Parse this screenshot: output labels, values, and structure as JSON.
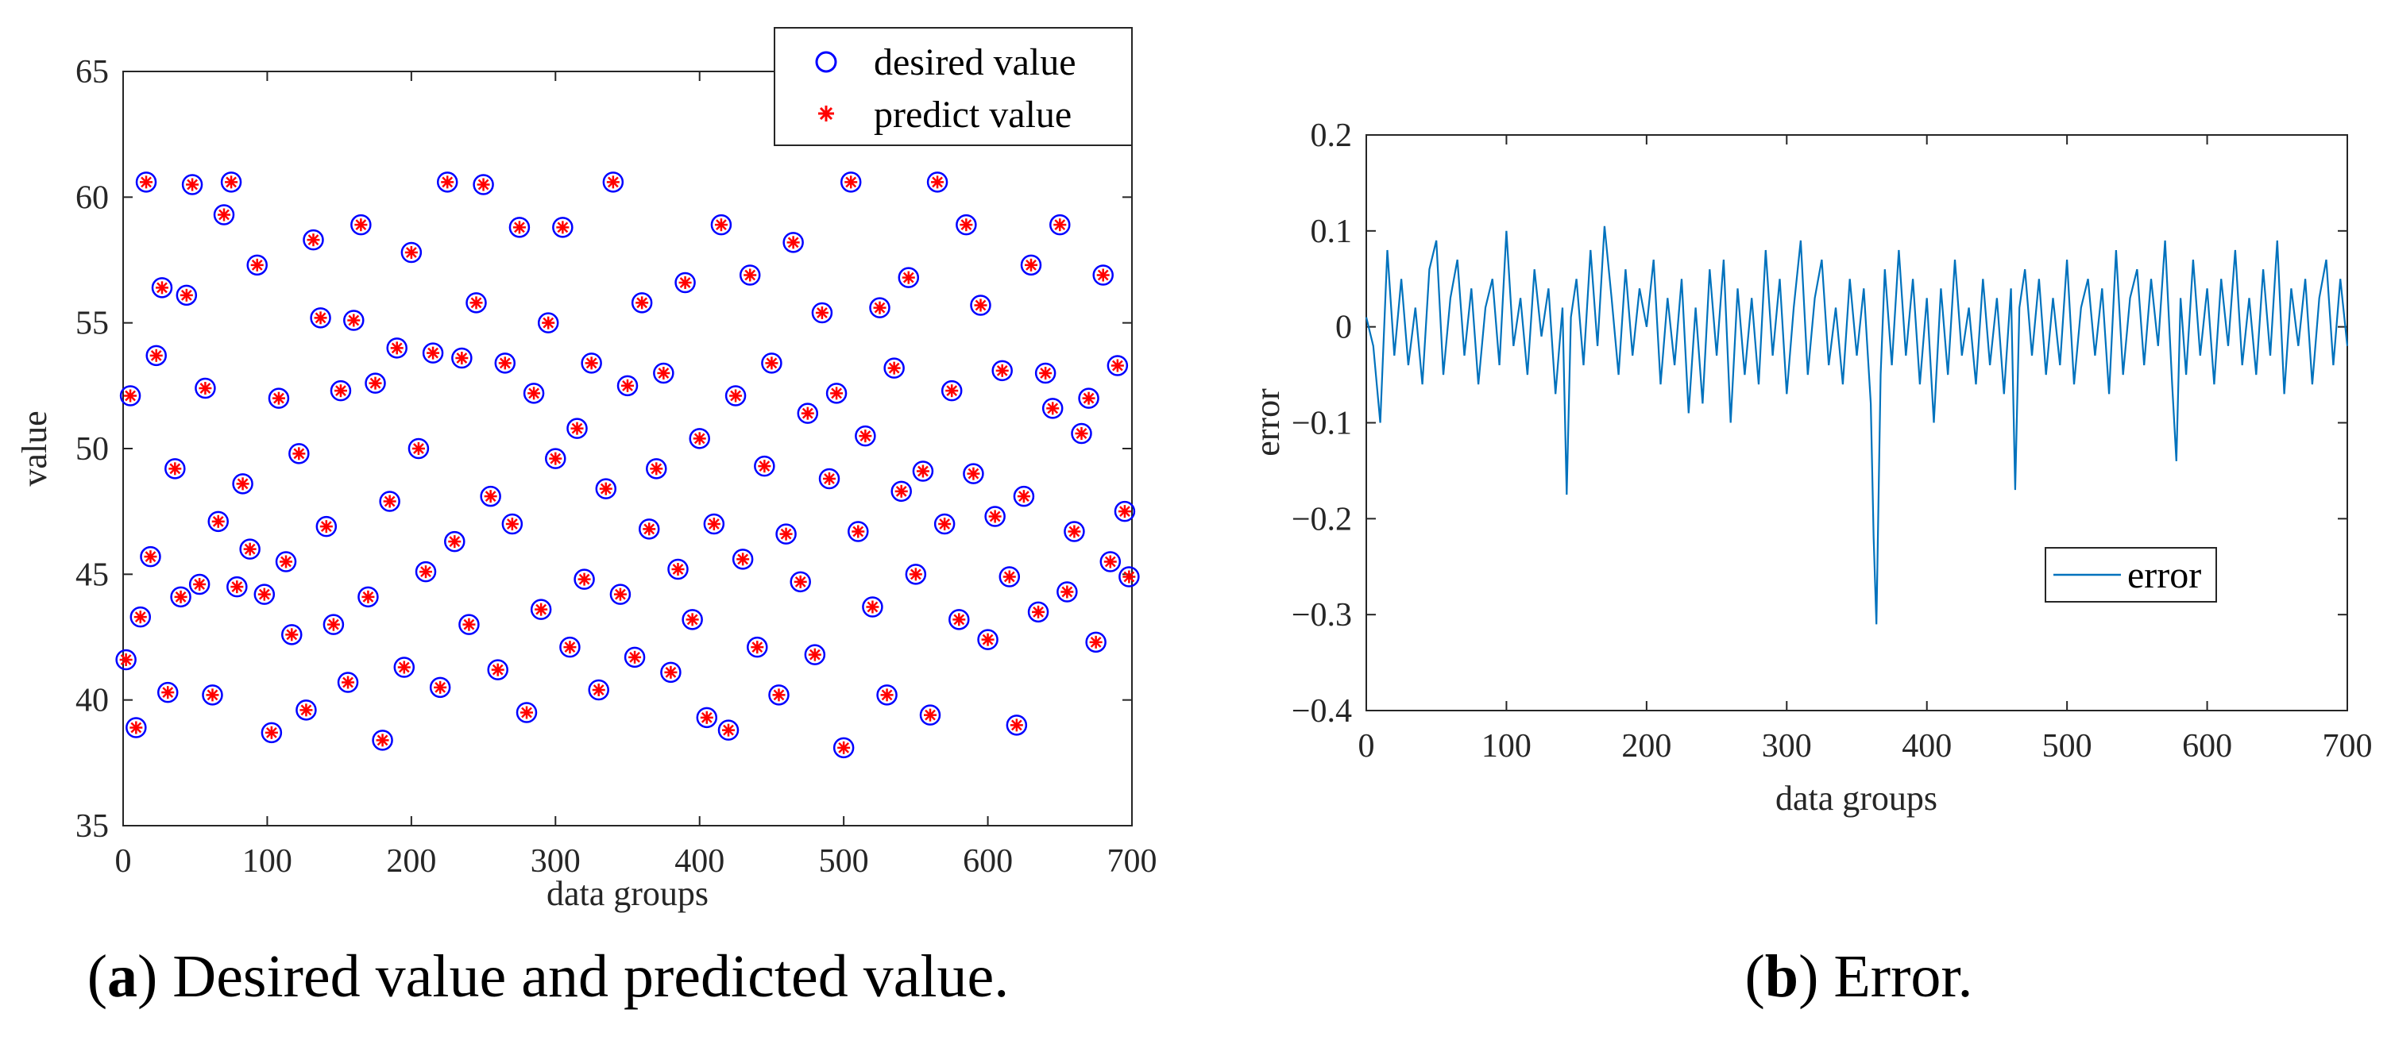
{
  "chart_data": [
    {
      "type": "scatter",
      "title": "",
      "xlabel": "data groups",
      "ylabel": "value",
      "xlim": [
        0,
        700
      ],
      "ylim": [
        35,
        65
      ],
      "xticks": [
        "0",
        "100",
        "200",
        "300",
        "400",
        "500",
        "600",
        "700"
      ],
      "yticks": [
        "35",
        "40",
        "45",
        "50",
        "55",
        "60",
        "65"
      ],
      "legend_position": "top-right",
      "caption_letter": "a",
      "caption_text": ") Desired value and predicted value.",
      "caption_open": "(",
      "colors": {
        "desired": "#0000ff",
        "predict": "#ff0000"
      },
      "series": [
        {
          "name": "desired value",
          "marker": "circle",
          "x": [
            2,
            5,
            9,
            12,
            16,
            19,
            23,
            27,
            31,
            36,
            40,
            44,
            48,
            53,
            57,
            62,
            66,
            70,
            75,
            79,
            83,
            88,
            93,
            98,
            103,
            108,
            113,
            117,
            122,
            127,
            132,
            137,
            141,
            146,
            151,
            156,
            160,
            165,
            170,
            175,
            180,
            185,
            190,
            195,
            200,
            205,
            210,
            215,
            220,
            225,
            230,
            235,
            240,
            245,
            250,
            255,
            260,
            265,
            270,
            275,
            280,
            285,
            290,
            295,
            300,
            305,
            310,
            315,
            320,
            325,
            330,
            335,
            340,
            345,
            350,
            355,
            360,
            365,
            370,
            375,
            380,
            385,
            390,
            395,
            400,
            405,
            410,
            415,
            420,
            425,
            430,
            435,
            440,
            445,
            450,
            455,
            460,
            465,
            470,
            475,
            480,
            485,
            490,
            495,
            500,
            505,
            510,
            515,
            520,
            525,
            530,
            535,
            540,
            545,
            550,
            555,
            560,
            565,
            570,
            575,
            580,
            585,
            590,
            595,
            600,
            605,
            610,
            615,
            620,
            625,
            630,
            635,
            640,
            645,
            650,
            655,
            660,
            665,
            670,
            675,
            680,
            685,
            690,
            695,
            698
          ],
          "y": [
            41.6,
            52.1,
            38.9,
            43.3,
            60.6,
            45.7,
            53.7,
            56.4,
            40.3,
            49.2,
            44.1,
            56.1,
            60.5,
            44.6,
            52.4,
            40.2,
            47.1,
            59.3,
            60.6,
            44.5,
            48.6,
            46.0,
            57.3,
            44.2,
            38.7,
            52.0,
            45.5,
            42.6,
            49.8,
            39.6,
            58.3,
            55.2,
            46.9,
            43.0,
            52.3,
            40.7,
            55.1,
            58.9,
            44.1,
            52.6,
            38.4,
            47.9,
            54.0,
            41.3,
            57.8,
            50.0,
            45.1,
            53.8,
            40.5,
            60.6,
            46.3,
            53.6,
            43.0,
            55.8,
            60.5,
            48.1,
            41.2,
            53.4,
            47.0,
            58.8,
            39.5,
            52.2,
            43.6,
            55.0,
            49.6,
            58.8,
            42.1,
            50.8,
            44.8,
            53.4,
            40.4,
            48.4,
            60.6,
            44.2,
            52.5,
            41.7,
            55.8,
            46.8,
            49.2,
            53.0,
            41.1,
            45.2,
            56.6,
            43.2,
            50.4,
            39.3,
            47.0,
            58.9,
            38.8,
            52.1,
            45.6,
            56.9,
            42.1,
            49.3,
            53.4,
            40.2,
            46.6,
            58.2,
            44.7,
            51.4,
            41.8,
            55.4,
            48.8,
            52.2,
            38.1,
            60.6,
            46.7,
            50.5,
            43.7,
            55.6,
            40.2,
            53.2,
            48.3,
            56.8,
            45.0,
            49.1,
            39.4,
            60.6,
            47.0,
            52.3,
            43.2,
            58.9,
            49.0,
            55.7,
            42.4,
            47.3,
            53.1,
            44.9,
            39.0,
            48.1,
            57.3,
            43.5,
            53.0,
            51.6,
            58.9,
            44.3,
            46.7,
            50.6,
            52.0,
            42.3,
            56.9,
            45.5,
            53.3,
            47.5,
            44.9
          ]
        },
        {
          "name": "predict value",
          "marker": "star",
          "x": [
            2,
            5,
            9,
            12,
            16,
            19,
            23,
            27,
            31,
            36,
            40,
            44,
            48,
            53,
            57,
            62,
            66,
            70,
            75,
            79,
            83,
            88,
            93,
            98,
            103,
            108,
            113,
            117,
            122,
            127,
            132,
            137,
            141,
            146,
            151,
            156,
            160,
            165,
            170,
            175,
            180,
            185,
            190,
            195,
            200,
            205,
            210,
            215,
            220,
            225,
            230,
            235,
            240,
            245,
            250,
            255,
            260,
            265,
            270,
            275,
            280,
            285,
            290,
            295,
            300,
            305,
            310,
            315,
            320,
            325,
            330,
            335,
            340,
            345,
            350,
            355,
            360,
            365,
            370,
            375,
            380,
            385,
            390,
            395,
            400,
            405,
            410,
            415,
            420,
            425,
            430,
            435,
            440,
            445,
            450,
            455,
            460,
            465,
            470,
            475,
            480,
            485,
            490,
            495,
            500,
            505,
            510,
            515,
            520,
            525,
            530,
            535,
            540,
            545,
            550,
            555,
            560,
            565,
            570,
            575,
            580,
            585,
            590,
            595,
            600,
            605,
            610,
            615,
            620,
            625,
            630,
            635,
            640,
            645,
            650,
            655,
            660,
            665,
            670,
            675,
            680,
            685,
            690,
            695,
            698
          ],
          "y": [
            41.6,
            52.1,
            38.9,
            43.3,
            60.6,
            45.7,
            53.7,
            56.4,
            40.3,
            49.2,
            44.1,
            56.1,
            60.5,
            44.6,
            52.4,
            40.2,
            47.1,
            59.3,
            60.6,
            44.5,
            48.6,
            46.0,
            57.3,
            44.2,
            38.7,
            52.0,
            45.5,
            42.6,
            49.8,
            39.6,
            58.3,
            55.2,
            46.9,
            43.0,
            52.3,
            40.7,
            55.1,
            58.9,
            44.1,
            52.6,
            38.4,
            47.9,
            54.0,
            41.3,
            57.8,
            50.0,
            45.1,
            53.8,
            40.5,
            60.6,
            46.3,
            53.6,
            43.0,
            55.8,
            60.5,
            48.1,
            41.2,
            53.4,
            47.0,
            58.8,
            39.5,
            52.2,
            43.6,
            55.0,
            49.6,
            58.8,
            42.1,
            50.8,
            44.8,
            53.4,
            40.4,
            48.4,
            60.6,
            44.2,
            52.5,
            41.7,
            55.8,
            46.8,
            49.2,
            53.0,
            41.1,
            45.2,
            56.6,
            43.2,
            50.4,
            39.3,
            47.0,
            58.9,
            38.8,
            52.1,
            45.6,
            56.9,
            42.1,
            49.3,
            53.4,
            40.2,
            46.6,
            58.2,
            44.7,
            51.4,
            41.8,
            55.4,
            48.8,
            52.2,
            38.1,
            60.6,
            46.7,
            50.5,
            43.7,
            55.6,
            40.2,
            53.2,
            48.3,
            56.8,
            45.0,
            49.1,
            39.4,
            60.6,
            47.0,
            52.3,
            43.2,
            58.9,
            49.0,
            55.7,
            42.4,
            47.3,
            53.1,
            44.9,
            39.0,
            48.1,
            57.3,
            43.5,
            53.0,
            51.6,
            58.9,
            44.3,
            46.7,
            50.6,
            52.0,
            42.3,
            56.9,
            45.5,
            53.3,
            47.5,
            44.9
          ]
        }
      ]
    },
    {
      "type": "line",
      "title": "",
      "xlabel": "data groups",
      "ylabel": "error",
      "xlim": [
        0,
        700
      ],
      "ylim": [
        -0.4,
        0.2
      ],
      "xticks": [
        "0",
        "100",
        "200",
        "300",
        "400",
        "500",
        "600",
        "700"
      ],
      "yticks": [
        "−0.4",
        "−0.3",
        "−0.2",
        "−0.1",
        "0",
        "0.1",
        "0.2"
      ],
      "legend_position": "lower-right",
      "caption_letter": "b",
      "caption_text": ") Error.",
      "caption_open": "(",
      "colors": {
        "error": "#0072bd"
      },
      "series": [
        {
          "name": "error",
          "x": [
            0,
            5,
            10,
            15,
            20,
            25,
            30,
            35,
            40,
            45,
            50,
            55,
            60,
            65,
            70,
            75,
            80,
            85,
            90,
            95,
            100,
            105,
            110,
            115,
            120,
            125,
            130,
            135,
            140,
            143,
            146,
            150,
            155,
            160,
            165,
            170,
            175,
            180,
            185,
            190,
            195,
            200,
            205,
            210,
            215,
            220,
            225,
            230,
            235,
            240,
            245,
            250,
            255,
            260,
            265,
            270,
            275,
            280,
            285,
            290,
            295,
            300,
            305,
            310,
            315,
            320,
            325,
            330,
            335,
            340,
            345,
            350,
            355,
            360,
            362,
            364,
            367,
            370,
            375,
            380,
            385,
            390,
            395,
            400,
            405,
            410,
            415,
            420,
            425,
            430,
            435,
            440,
            445,
            450,
            455,
            460,
            463,
            466,
            470,
            475,
            480,
            485,
            490,
            495,
            500,
            505,
            510,
            515,
            520,
            525,
            530,
            535,
            540,
            545,
            550,
            555,
            560,
            565,
            570,
            575,
            578,
            581,
            585,
            590,
            595,
            600,
            605,
            610,
            615,
            620,
            625,
            630,
            635,
            640,
            645,
            650,
            655,
            660,
            665,
            670,
            675,
            680,
            685,
            690,
            695,
            700
          ],
          "y": [
            0.01,
            -0.02,
            -0.1,
            0.08,
            -0.03,
            0.05,
            -0.04,
            0.02,
            -0.06,
            0.06,
            0.09,
            -0.05,
            0.03,
            0.07,
            -0.03,
            0.04,
            -0.06,
            0.02,
            0.05,
            -0.04,
            0.1,
            -0.02,
            0.03,
            -0.05,
            0.06,
            -0.01,
            0.04,
            -0.07,
            0.02,
            -0.175,
            0.01,
            0.05,
            -0.04,
            0.08,
            -0.02,
            0.105,
            0.03,
            -0.05,
            0.06,
            -0.03,
            0.04,
            0.0,
            0.07,
            -0.06,
            0.03,
            -0.04,
            0.05,
            -0.09,
            0.02,
            -0.08,
            0.06,
            -0.03,
            0.07,
            -0.1,
            0.04,
            -0.05,
            0.03,
            -0.06,
            0.08,
            -0.03,
            0.05,
            -0.07,
            0.02,
            0.09,
            -0.05,
            0.03,
            0.07,
            -0.04,
            0.02,
            -0.06,
            0.05,
            -0.03,
            0.04,
            -0.08,
            -0.22,
            -0.31,
            -0.05,
            0.06,
            -0.04,
            0.08,
            -0.03,
            0.05,
            -0.06,
            0.03,
            -0.1,
            0.04,
            -0.05,
            0.07,
            -0.03,
            0.02,
            -0.06,
            0.05,
            -0.04,
            0.03,
            -0.07,
            0.04,
            -0.17,
            0.02,
            0.06,
            -0.03,
            0.05,
            -0.05,
            0.03,
            -0.04,
            0.07,
            -0.06,
            0.02,
            0.05,
            -0.03,
            0.04,
            -0.07,
            0.08,
            -0.05,
            0.03,
            0.06,
            -0.04,
            0.05,
            -0.02,
            0.09,
            -0.06,
            -0.14,
            0.03,
            -0.05,
            0.07,
            -0.03,
            0.04,
            -0.06,
            0.05,
            -0.02,
            0.08,
            -0.04,
            0.03,
            -0.05,
            0.06,
            -0.03,
            0.09,
            -0.07,
            0.04,
            -0.02,
            0.05,
            -0.06,
            0.03,
            0.07,
            -0.04,
            0.05,
            -0.02
          ]
        }
      ]
    }
  ]
}
